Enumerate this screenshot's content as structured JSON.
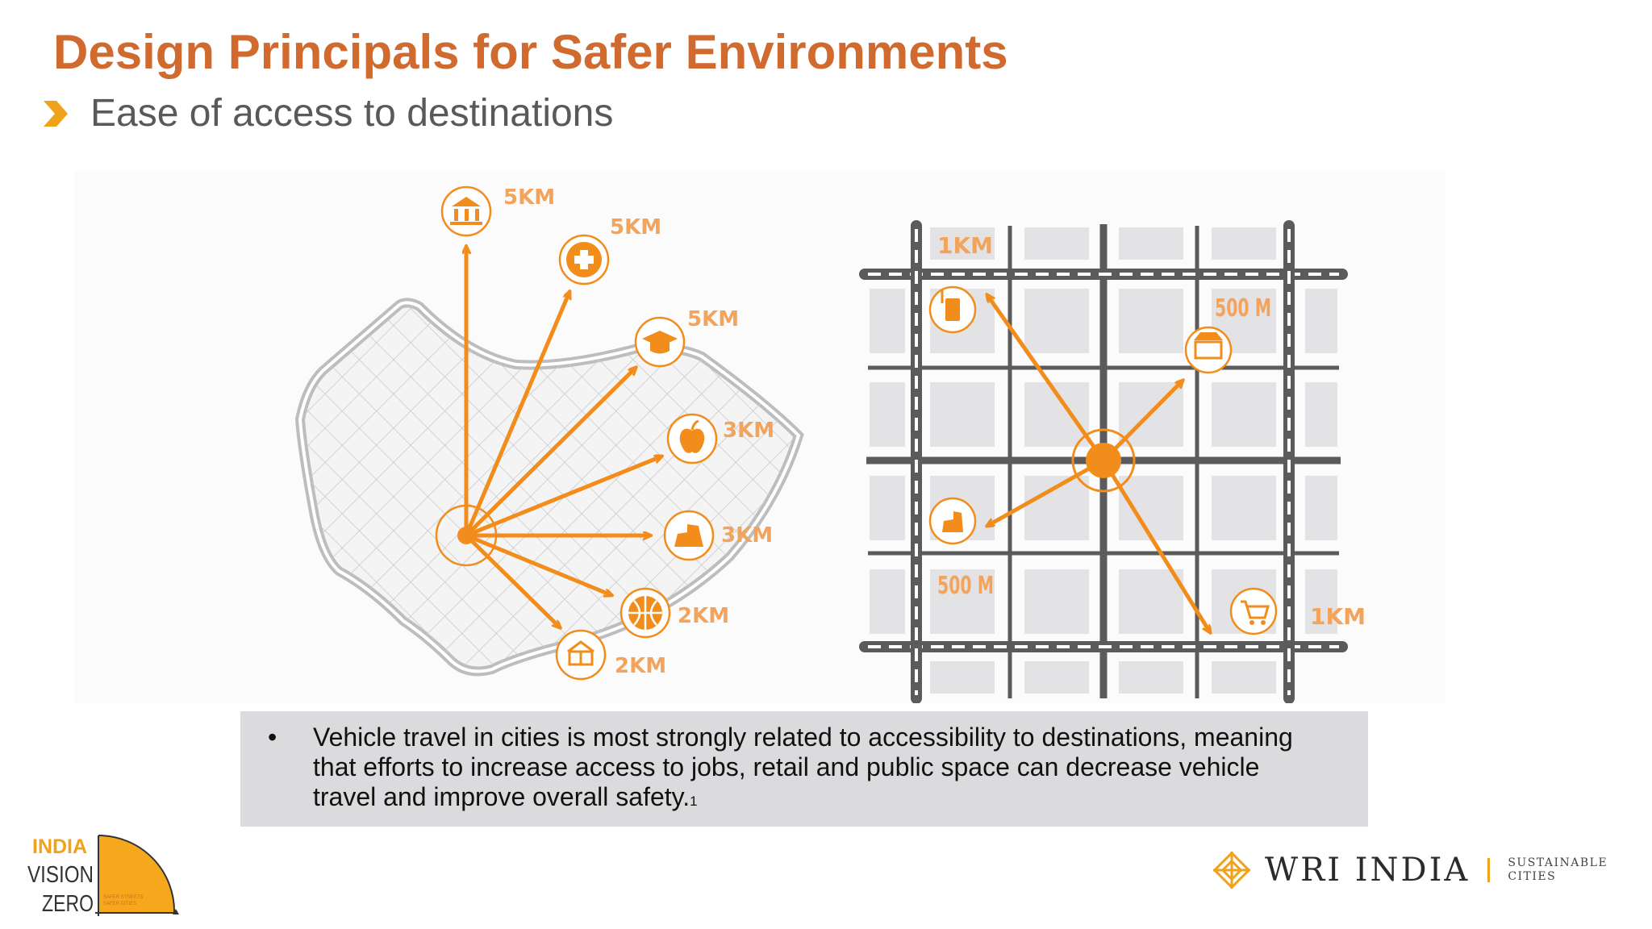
{
  "slide": {
    "title": "Design Principals for Safer Environments",
    "subtitle": "Ease of access to destinations"
  },
  "left_diagram": {
    "destinations": [
      {
        "icon": "museum-icon",
        "distance": "5KM"
      },
      {
        "icon": "hospital-cross-icon",
        "distance": "5KM"
      },
      {
        "icon": "graduation-cap-icon",
        "distance": "5KM"
      },
      {
        "icon": "apple-icon",
        "distance": "3KM"
      },
      {
        "icon": "playground-icon",
        "distance": "3KM"
      },
      {
        "icon": "basketball-icon",
        "distance": "2KM"
      },
      {
        "icon": "library-book-icon",
        "distance": "2KM"
      }
    ]
  },
  "right_diagram": {
    "destinations": [
      {
        "icon": "fuel-station-icon",
        "distance": "1KM"
      },
      {
        "icon": "market-stall-icon",
        "distance": "500 M"
      },
      {
        "icon": "playground-icon",
        "distance": "500 M"
      },
      {
        "icon": "shopping-cart-icon",
        "distance": "1KM"
      }
    ]
  },
  "note": {
    "bullet": "•",
    "text": "Vehicle travel in cities is most strongly related to accessibility to destinations, meaning that efforts to increase access to jobs, retail and public space can decrease vehicle travel and improve overall safety.",
    "superscript": "1"
  },
  "logos": {
    "india_vision_zero": {
      "line1": "INDIA",
      "line2": "VISION",
      "line3": "ZERO",
      "tagline_1": "SAFER STREETS",
      "tagline_2": "SAFER CITIES"
    },
    "wri": {
      "name": "WRI INDIA",
      "sub1": "SUSTAINABLE",
      "sub2": "CITIES"
    }
  },
  "colors": {
    "title": "#d06a2e",
    "accent": "#f28c1a",
    "grid": "#555555",
    "note_bg": "#dbdbdd"
  }
}
